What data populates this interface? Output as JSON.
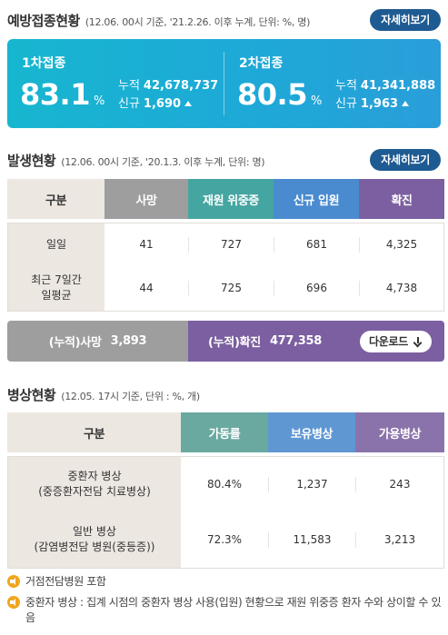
{
  "vaccination": {
    "title": "예방접종현황",
    "meta": "(12.06. 00시 기준, '21.2.26. 이후 누계, 단위: %, 명)",
    "more_label": "자세히보기",
    "unit": "%",
    "dose1": {
      "label": "1차접종",
      "rate": "83.1",
      "cum_label": "누적",
      "cum_value": "42,678,737",
      "new_label": "신규",
      "new_value": "1,690"
    },
    "dose2": {
      "label": "2차접종",
      "rate": "80.5",
      "cum_label": "누적",
      "cum_value": "41,341,888",
      "new_label": "신규",
      "new_value": "1,963"
    }
  },
  "occurrence": {
    "title": "발생현황",
    "meta": "(12.06. 00시 기준, '20.1.3. 이후 누계, 단위: 명)",
    "more_label": "자세히보기",
    "headers": [
      "구분",
      "사망",
      "재원 위중증",
      "신규 입원",
      "확진"
    ],
    "header_colors": [
      "#ece7e1",
      "#9e9e9e",
      "#45a5a1",
      "#4a8bd0",
      "#7b5fa0"
    ],
    "rows": [
      {
        "label": "일일",
        "values": [
          "41",
          "727",
          "681",
          "4,325"
        ]
      },
      {
        "label_line1": "최근 7일간",
        "label_line2": "일평균",
        "values": [
          "44",
          "725",
          "696",
          "4,738"
        ]
      }
    ],
    "cum_death_label": "(누적)사망",
    "cum_death_value": "3,893",
    "cum_confirmed_label": "(누적)확진",
    "cum_confirmed_value": "477,358",
    "download_label": "다운로드"
  },
  "beds": {
    "title": "병상현황",
    "meta": "(12.05. 17시 기준, 단위 : %, 개)",
    "headers": [
      "구분",
      "가동률",
      "보유병상",
      "가용병상"
    ],
    "header_colors": [
      "#ece7e1",
      "#6aa9a0",
      "#5f97d3",
      "#8a73ab"
    ],
    "rows": [
      {
        "label_line1": "중환자 병상",
        "label_line2": "(중증환자전담 치료병상)",
        "values": [
          "80.4%",
          "1,237",
          "243"
        ]
      },
      {
        "label_line1": "일반 병상",
        "label_line2": "(감염병전담 병원(중등증))",
        "values": [
          "72.3%",
          "11,583",
          "3,213"
        ]
      }
    ]
  },
  "notes": [
    "거점전담병원 포함",
    "중환자 병상 : 집계 시점의 중환자 병상 사용(입원) 현황으로 재원 위중증 환자 수와 상이할 수 있음"
  ],
  "icons": {
    "increase": "triangle-up-icon",
    "download": "download-icon",
    "note": "speaker-icon"
  }
}
